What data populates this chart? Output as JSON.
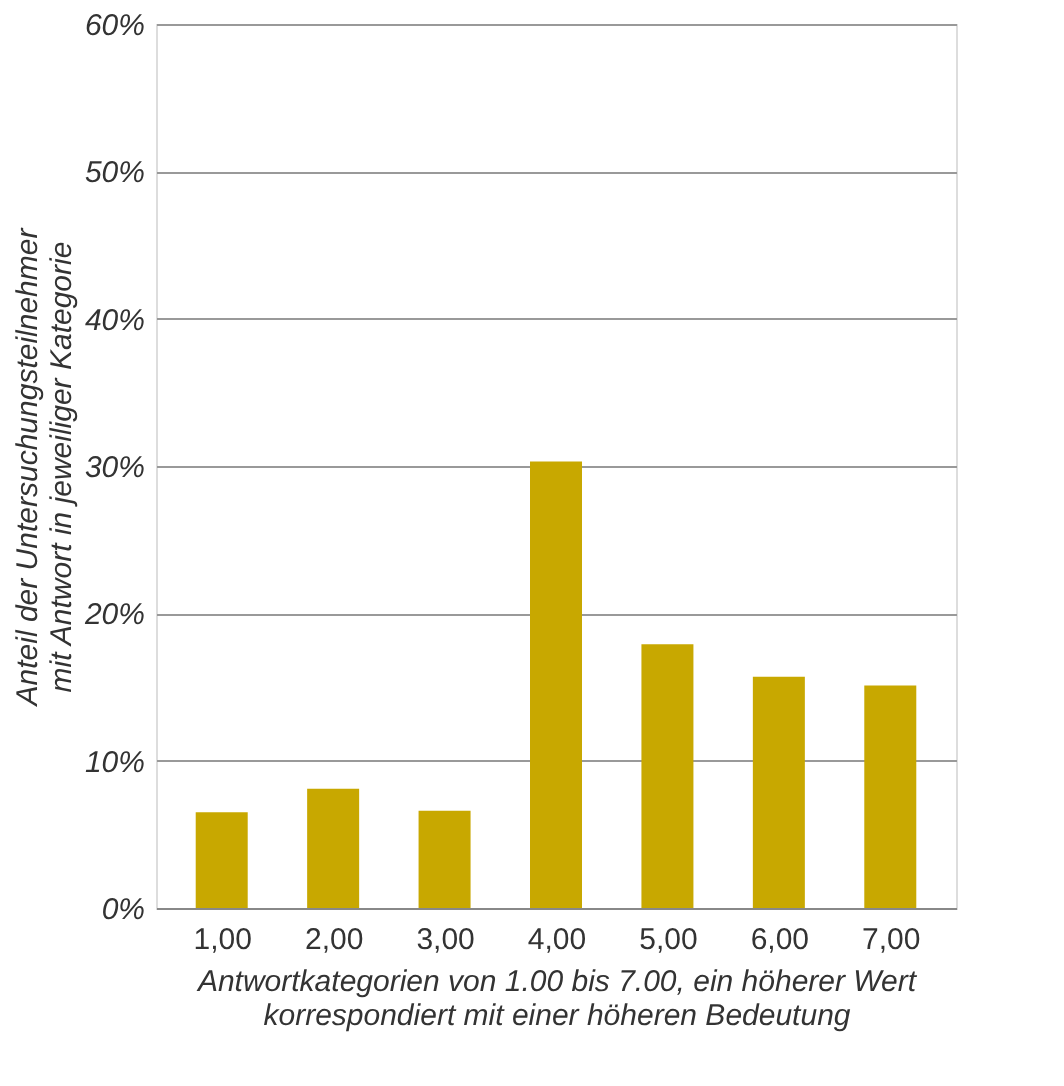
{
  "chart_data": {
    "type": "bar",
    "categories": [
      "1,00",
      "2,00",
      "3,00",
      "4,00",
      "5,00",
      "6,00",
      "7,00"
    ],
    "values": [
      6.5,
      8.1,
      6.6,
      30.3,
      17.9,
      15.7,
      15.1
    ],
    "color": "#c8a800",
    "xlabel": "Antwortkategorien von 1.00 bis 7.00, ein höherer Wert\nkorrespondiert mit einer höheren Bedeutung",
    "ylabel": "Anteil der Untersuchungsteilnehmer\nmit Antwort in jeweiliger Kategorie",
    "ylim": [
      0,
      60
    ],
    "yticks": [
      {
        "value": 0,
        "label": "0%"
      },
      {
        "value": 10,
        "label": "10%"
      },
      {
        "value": 20,
        "label": "20%"
      },
      {
        "value": 30,
        "label": "30%"
      },
      {
        "value": 40,
        "label": "40%"
      },
      {
        "value": 50,
        "label": "50%"
      },
      {
        "value": 60,
        "label": "60%"
      }
    ],
    "grid": "y"
  }
}
